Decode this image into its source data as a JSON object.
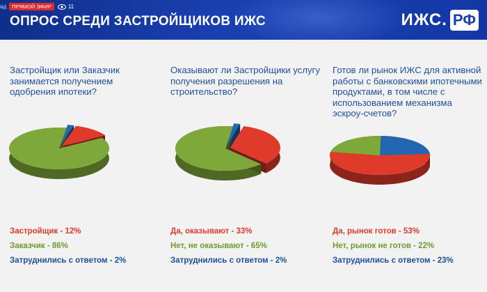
{
  "header": {
    "live_prefix": "ад",
    "live_label": "ПРЯМОЙ ЭФИР",
    "viewers": "11",
    "title": "ОПРОС СРЕДИ ЗАСТРОЙЩИКОВ ИЖС",
    "logo_text": "ИЖС.",
    "logo_box": "РФ"
  },
  "colors": {
    "red": "#e03a2a",
    "green": "#7fa83a",
    "blue": "#2367b3"
  },
  "questions": [
    "Застройщик или Заказчик занимается получением одобрения ипотеки?",
    "Оказывают ли Застройщики услугу получения разрешения на строительство?",
    "Готов ли рынок ИЖС для активной работы с банковскими ипотечными продуктами, в том числе с использованием механизма эскроу-счетов?"
  ],
  "chart_data": [
    {
      "type": "pie",
      "series": [
        {
          "name": "Застройщик",
          "value": 12,
          "color": "red"
        },
        {
          "name": "Заказчик",
          "value": 86,
          "color": "green"
        },
        {
          "name": "Затруднились с ответом",
          "value": 2,
          "color": "blue"
        }
      ],
      "labels": [
        "Застройщик - 12%",
        "Заказчик - 86%",
        "Затруднились с ответом - 2%"
      ]
    },
    {
      "type": "pie",
      "series": [
        {
          "name": "Да, оказывают",
          "value": 33,
          "color": "red"
        },
        {
          "name": "Нет, не оказывают",
          "value": 65,
          "color": "green"
        },
        {
          "name": "Затруднились с ответом",
          "value": 2,
          "color": "blue"
        }
      ],
      "labels": [
        "Да, оказывают - 33%",
        "Нет, не оказывают - 65%",
        "Затруднились с ответом - 2%"
      ]
    },
    {
      "type": "pie",
      "series": [
        {
          "name": "Да, рынок готов",
          "value": 53,
          "color": "red"
        },
        {
          "name": "Нет, рынок не готов",
          "value": 22,
          "color": "green"
        },
        {
          "name": "Затруднились с ответом",
          "value": 23,
          "color": "blue"
        }
      ],
      "labels": [
        "Да, рынок готов - 53%",
        "Нет, рынок не готов - 22%",
        "Затруднились с ответом - 23%"
      ]
    }
  ]
}
